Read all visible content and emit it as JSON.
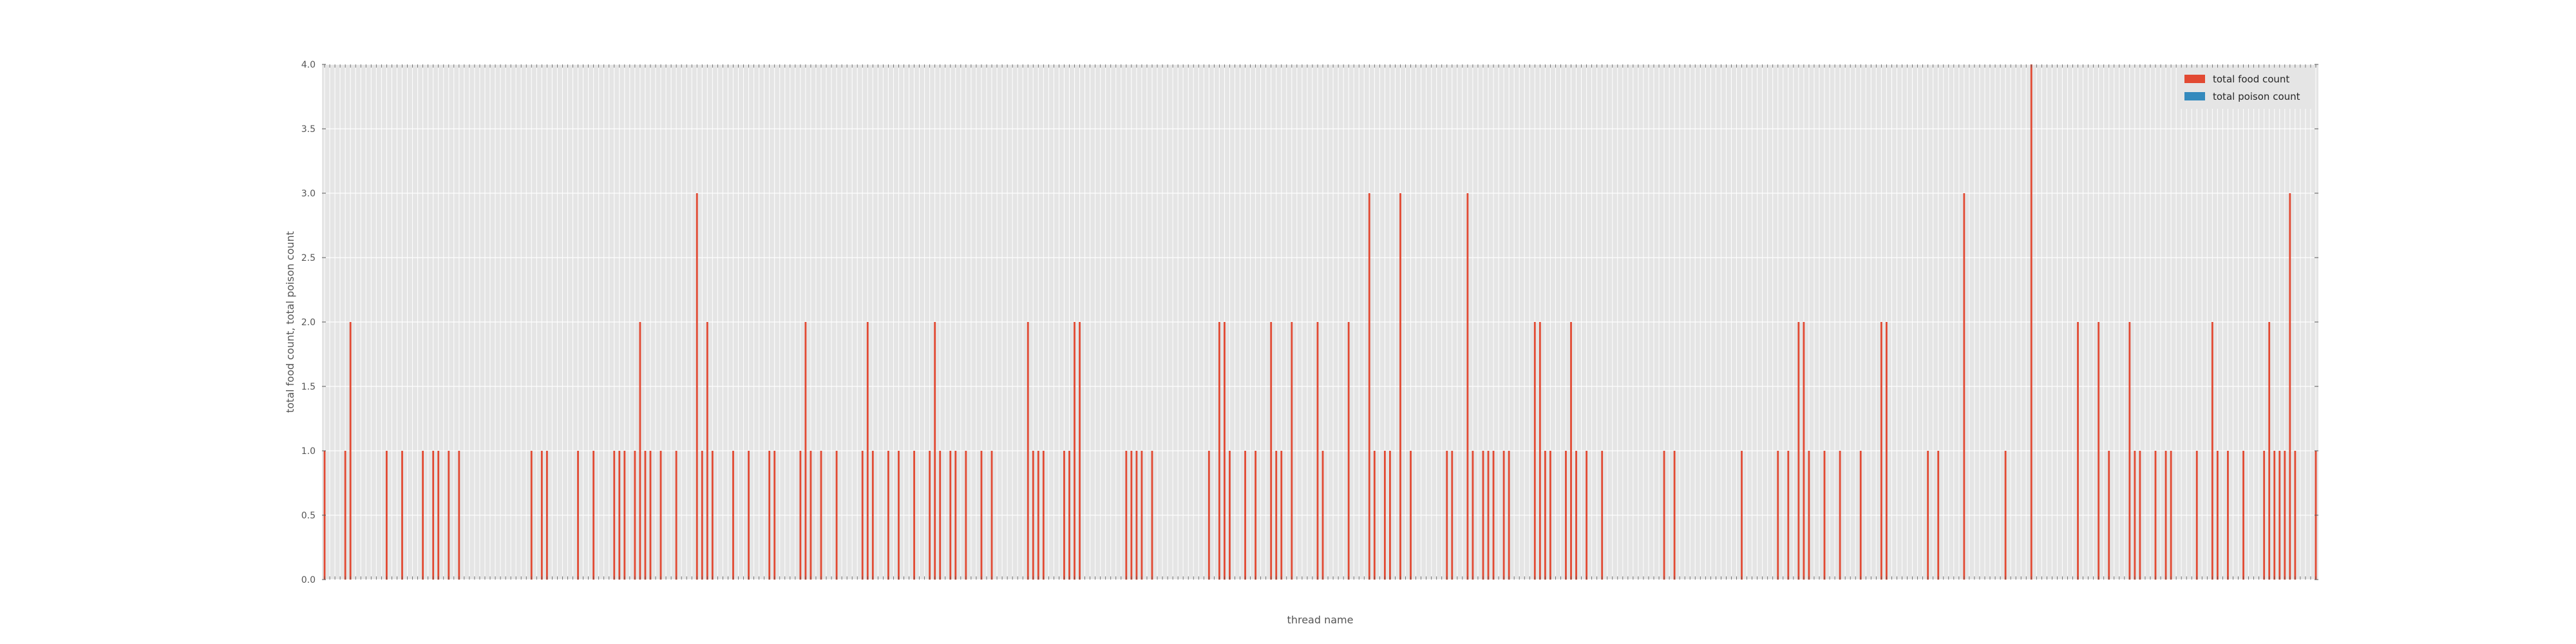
{
  "chart_data": {
    "type": "bar",
    "xlabel": "thread name",
    "ylabel": "total food count, total poison count",
    "ylim": [
      0,
      4
    ],
    "yticks": [
      "0.0",
      "0.5",
      "1.0",
      "1.5",
      "2.0",
      "2.5",
      "3.0",
      "3.5",
      "4.0"
    ],
    "grid": true,
    "legend_position": "top-right",
    "colors": {
      "food": "#E24A33",
      "poison": "#348ABD",
      "plot_bg": "#E5E5E5",
      "grid": "#FFFFFF",
      "text": "#555555"
    },
    "categories_note": "x tick labels are dense rotated thread identifiers; individual labels not legible",
    "series": [
      {
        "name": "total food count",
        "color": "#E24A33",
        "values": [
          1,
          0,
          0,
          0,
          1,
          2,
          0,
          0,
          0,
          0,
          0,
          0,
          1,
          0,
          0,
          1,
          0,
          0,
          0,
          1,
          0,
          1,
          1,
          0,
          1,
          0,
          1,
          0,
          0,
          0,
          0,
          0,
          0,
          0,
          0,
          0,
          0,
          0,
          0,
          0,
          1,
          0,
          1,
          1,
          0,
          0,
          0,
          0,
          0,
          1,
          0,
          0,
          1,
          0,
          0,
          0,
          1,
          1,
          1,
          0,
          1,
          2,
          1,
          1,
          0,
          1,
          0,
          0,
          1,
          0,
          0,
          0,
          3,
          1,
          2,
          1,
          0,
          0,
          0,
          1,
          0,
          0,
          1,
          0,
          0,
          0,
          1,
          1,
          0,
          0,
          0,
          0,
          1,
          2,
          1,
          0,
          1,
          0,
          0,
          1,
          0,
          0,
          0,
          0,
          1,
          2,
          1,
          0,
          0,
          1,
          0,
          1,
          0,
          0,
          1,
          0,
          0,
          1,
          2,
          1,
          0,
          1,
          1,
          0,
          1,
          0,
          0,
          1,
          0,
          1,
          0,
          0,
          0,
          0,
          0,
          0,
          2,
          1,
          1,
          1,
          0,
          0,
          0,
          1,
          1,
          2,
          2,
          0,
          0,
          0,
          0,
          0,
          0,
          0,
          0,
          1,
          1,
          1,
          1,
          0,
          1,
          0,
          0,
          0,
          0,
          0,
          0,
          0,
          0,
          0,
          0,
          1,
          0,
          2,
          2,
          1,
          0,
          0,
          1,
          0,
          1,
          0,
          0,
          2,
          1,
          1,
          0,
          2,
          0,
          0,
          0,
          0,
          2,
          1,
          0,
          0,
          0,
          0,
          2,
          0,
          0,
          0,
          3,
          1,
          0,
          1,
          1,
          0,
          3,
          0,
          1,
          0,
          0,
          0,
          0,
          0,
          0,
          1,
          1,
          0,
          0,
          3,
          1,
          0,
          1,
          1,
          1,
          0,
          1,
          1,
          0,
          0,
          0,
          0,
          2,
          2,
          1,
          1,
          0,
          0,
          1,
          2,
          1,
          0,
          1,
          0,
          0,
          1,
          0,
          0,
          0,
          0,
          0,
          0,
          0,
          0,
          0,
          0,
          0,
          1,
          0,
          1,
          0,
          0,
          0,
          0,
          0,
          0,
          0,
          0,
          0,
          0,
          0,
          0,
          1,
          0,
          0,
          0,
          0,
          0,
          0,
          1,
          0,
          1,
          0,
          2,
          2,
          1,
          0,
          0,
          1,
          0,
          0,
          1,
          0,
          0,
          0,
          1,
          0,
          0,
          0,
          2,
          2,
          0,
          0,
          0,
          0,
          0,
          0,
          0,
          1,
          0,
          1,
          0,
          0,
          0,
          0,
          3,
          0,
          0,
          0,
          0,
          0,
          0,
          0,
          1,
          0,
          0,
          0,
          0,
          4,
          0,
          0,
          0,
          0,
          0,
          0,
          0,
          0,
          2,
          0,
          0,
          0,
          2,
          0,
          1,
          0,
          0,
          0,
          2,
          1,
          1,
          0,
          0,
          1,
          0,
          1,
          1,
          0,
          0,
          0,
          0,
          1,
          0,
          0,
          2,
          1,
          0,
          1,
          0,
          0,
          1,
          0,
          0,
          0,
          1,
          2,
          1,
          1,
          1,
          3,
          1,
          0,
          0,
          0,
          1
        ]
      },
      {
        "name": "total poison count",
        "color": "#348ABD",
        "values": [
          0,
          0,
          0,
          0,
          0,
          0,
          0,
          0,
          0,
          0,
          0,
          0,
          0,
          0,
          0,
          0,
          0,
          0,
          0,
          0,
          0,
          0,
          0,
          0,
          0,
          0,
          0,
          0,
          0,
          0,
          0,
          0,
          0,
          0,
          0,
          0,
          0,
          0,
          0,
          0,
          0,
          0,
          0,
          0,
          0,
          0,
          0,
          0,
          0,
          0,
          0,
          0,
          0,
          0,
          0,
          0,
          0,
          0,
          0,
          0,
          0,
          0,
          0,
          0,
          0,
          0,
          0,
          0,
          0,
          0,
          0,
          0,
          0,
          0,
          0,
          0,
          0,
          0,
          0,
          0,
          0,
          0,
          0,
          0,
          0,
          0,
          0,
          0,
          0,
          0,
          0,
          0,
          0,
          0,
          0,
          0,
          0,
          0,
          0,
          0,
          0,
          0,
          0,
          0,
          0,
          0,
          0,
          0,
          0,
          0,
          0,
          0,
          0,
          0,
          0,
          0,
          0,
          0,
          0,
          0,
          0,
          0,
          0,
          0,
          0,
          0,
          0,
          0,
          0,
          0,
          0,
          0,
          0,
          0,
          0,
          0,
          0,
          0,
          0,
          0,
          0,
          0,
          0,
          0,
          0,
          0,
          0,
          0,
          0,
          0,
          0,
          0,
          0,
          0,
          0,
          0,
          0,
          0,
          0,
          0,
          0,
          0,
          0,
          0,
          0,
          0,
          0,
          0,
          0,
          0,
          0,
          0,
          0,
          0,
          0,
          0,
          0,
          0,
          0,
          0,
          0,
          0,
          0,
          0,
          0,
          0,
          0,
          0,
          0,
          0,
          0,
          0,
          0,
          0,
          0,
          0,
          0,
          0,
          0,
          0,
          0,
          0,
          0,
          0,
          0,
          0,
          0,
          0,
          0,
          0,
          0,
          0,
          0,
          0,
          0,
          0,
          0,
          0,
          0,
          0,
          0,
          0,
          0,
          0,
          0,
          0,
          0,
          0,
          0,
          0,
          0,
          0,
          0,
          0,
          0,
          0,
          0,
          0,
          0,
          0,
          0,
          0,
          0,
          0,
          0,
          0,
          0,
          0,
          0,
          0,
          0,
          0,
          0,
          0,
          0,
          0,
          0,
          0,
          0,
          0,
          0,
          0,
          0,
          0,
          0,
          0,
          0,
          0,
          0,
          0,
          0,
          0,
          0,
          0,
          0,
          0,
          0,
          0,
          0,
          0,
          0,
          0,
          0,
          0,
          0,
          0,
          0,
          0,
          0,
          0,
          0,
          0,
          0,
          0,
          0,
          0,
          0,
          0,
          0,
          0,
          0,
          0,
          0,
          0,
          0,
          0,
          0,
          0,
          0,
          0,
          0,
          0,
          0,
          0,
          0,
          0,
          0,
          0,
          0,
          0,
          0,
          0,
          0,
          0,
          0,
          0,
          0,
          0,
          0,
          0,
          0,
          0,
          0,
          0,
          0,
          0,
          0,
          0,
          0,
          0,
          0,
          0,
          0,
          0,
          0,
          0,
          0,
          0,
          0,
          0,
          0,
          0,
          0,
          0,
          0,
          0,
          0,
          0,
          0,
          0,
          0,
          0,
          0,
          0,
          0,
          0,
          0,
          0,
          0,
          0,
          0,
          0,
          0,
          0,
          0,
          0,
          0,
          0,
          0,
          0,
          0,
          0,
          0,
          0,
          0,
          0,
          0,
          0,
          0,
          0,
          0,
          0
        ]
      }
    ]
  }
}
